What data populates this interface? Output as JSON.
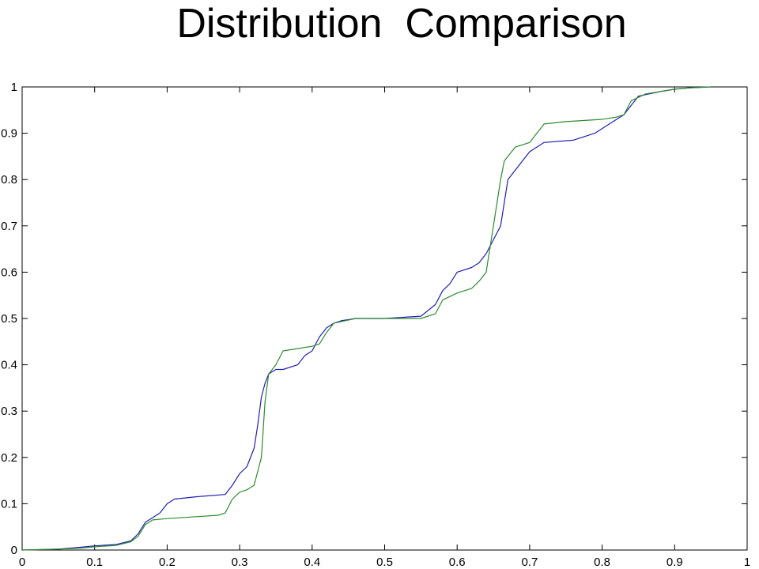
{
  "chart_data": {
    "type": "line",
    "title": "Distribution  Comparison",
    "xlabel": "",
    "ylabel": "",
    "xlim": [
      0,
      1
    ],
    "ylim": [
      0,
      1
    ],
    "grid": false,
    "x_ticks": [
      "0",
      "0.1",
      "0.2",
      "0.3",
      "0.4",
      "0.5",
      "0.6",
      "0.7",
      "0.8",
      "0.9",
      "1"
    ],
    "y_ticks": [
      "0",
      "0.1",
      "0.2",
      "0.3",
      "0.4",
      "0.5",
      "0.6",
      "0.7",
      "0.8",
      "0.9",
      "1"
    ],
    "series": [
      {
        "color": "#1f1fb4",
        "x": [
          0.0,
          0.05,
          0.08,
          0.1,
          0.13,
          0.15,
          0.16,
          0.17,
          0.18,
          0.19,
          0.2,
          0.21,
          0.24,
          0.28,
          0.29,
          0.3,
          0.31,
          0.32,
          0.325,
          0.33,
          0.335,
          0.34,
          0.35,
          0.36,
          0.38,
          0.39,
          0.4,
          0.41,
          0.42,
          0.43,
          0.44,
          0.46,
          0.5,
          0.55,
          0.57,
          0.58,
          0.59,
          0.6,
          0.62,
          0.63,
          0.64,
          0.65,
          0.66,
          0.665,
          0.67,
          0.68,
          0.69,
          0.7,
          0.72,
          0.76,
          0.79,
          0.8,
          0.82,
          0.83,
          0.84,
          0.85,
          0.88,
          0.9,
          0.92,
          0.95
        ],
        "y": [
          0.0,
          0.002,
          0.006,
          0.009,
          0.012,
          0.02,
          0.035,
          0.06,
          0.07,
          0.08,
          0.1,
          0.11,
          0.115,
          0.12,
          0.14,
          0.165,
          0.18,
          0.22,
          0.27,
          0.33,
          0.36,
          0.38,
          0.39,
          0.39,
          0.4,
          0.42,
          0.43,
          0.46,
          0.48,
          0.49,
          0.495,
          0.5,
          0.5,
          0.505,
          0.53,
          0.56,
          0.575,
          0.6,
          0.61,
          0.62,
          0.64,
          0.67,
          0.7,
          0.75,
          0.8,
          0.82,
          0.84,
          0.86,
          0.88,
          0.885,
          0.9,
          0.91,
          0.93,
          0.94,
          0.96,
          0.98,
          0.99,
          0.995,
          0.998,
          1.0
        ]
      },
      {
        "color": "#2e8b2e",
        "x": [
          0.0,
          0.05,
          0.08,
          0.1,
          0.13,
          0.15,
          0.16,
          0.17,
          0.18,
          0.2,
          0.24,
          0.27,
          0.28,
          0.29,
          0.3,
          0.31,
          0.32,
          0.325,
          0.33,
          0.335,
          0.34,
          0.35,
          0.36,
          0.38,
          0.4,
          0.41,
          0.42,
          0.43,
          0.46,
          0.55,
          0.57,
          0.58,
          0.6,
          0.61,
          0.62,
          0.63,
          0.64,
          0.65,
          0.66,
          0.665,
          0.67,
          0.68,
          0.7,
          0.72,
          0.75,
          0.8,
          0.82,
          0.83,
          0.84,
          0.86,
          0.88,
          0.9,
          0.92,
          0.95
        ],
        "y": [
          0.0,
          0.002,
          0.004,
          0.007,
          0.01,
          0.018,
          0.03,
          0.055,
          0.065,
          0.068,
          0.072,
          0.075,
          0.08,
          0.11,
          0.125,
          0.13,
          0.14,
          0.17,
          0.2,
          0.32,
          0.38,
          0.4,
          0.43,
          0.435,
          0.44,
          0.445,
          0.47,
          0.49,
          0.5,
          0.5,
          0.51,
          0.54,
          0.555,
          0.56,
          0.565,
          0.58,
          0.6,
          0.7,
          0.8,
          0.84,
          0.85,
          0.87,
          0.88,
          0.92,
          0.925,
          0.93,
          0.935,
          0.94,
          0.97,
          0.985,
          0.99,
          0.995,
          0.998,
          1.0
        ]
      }
    ]
  }
}
